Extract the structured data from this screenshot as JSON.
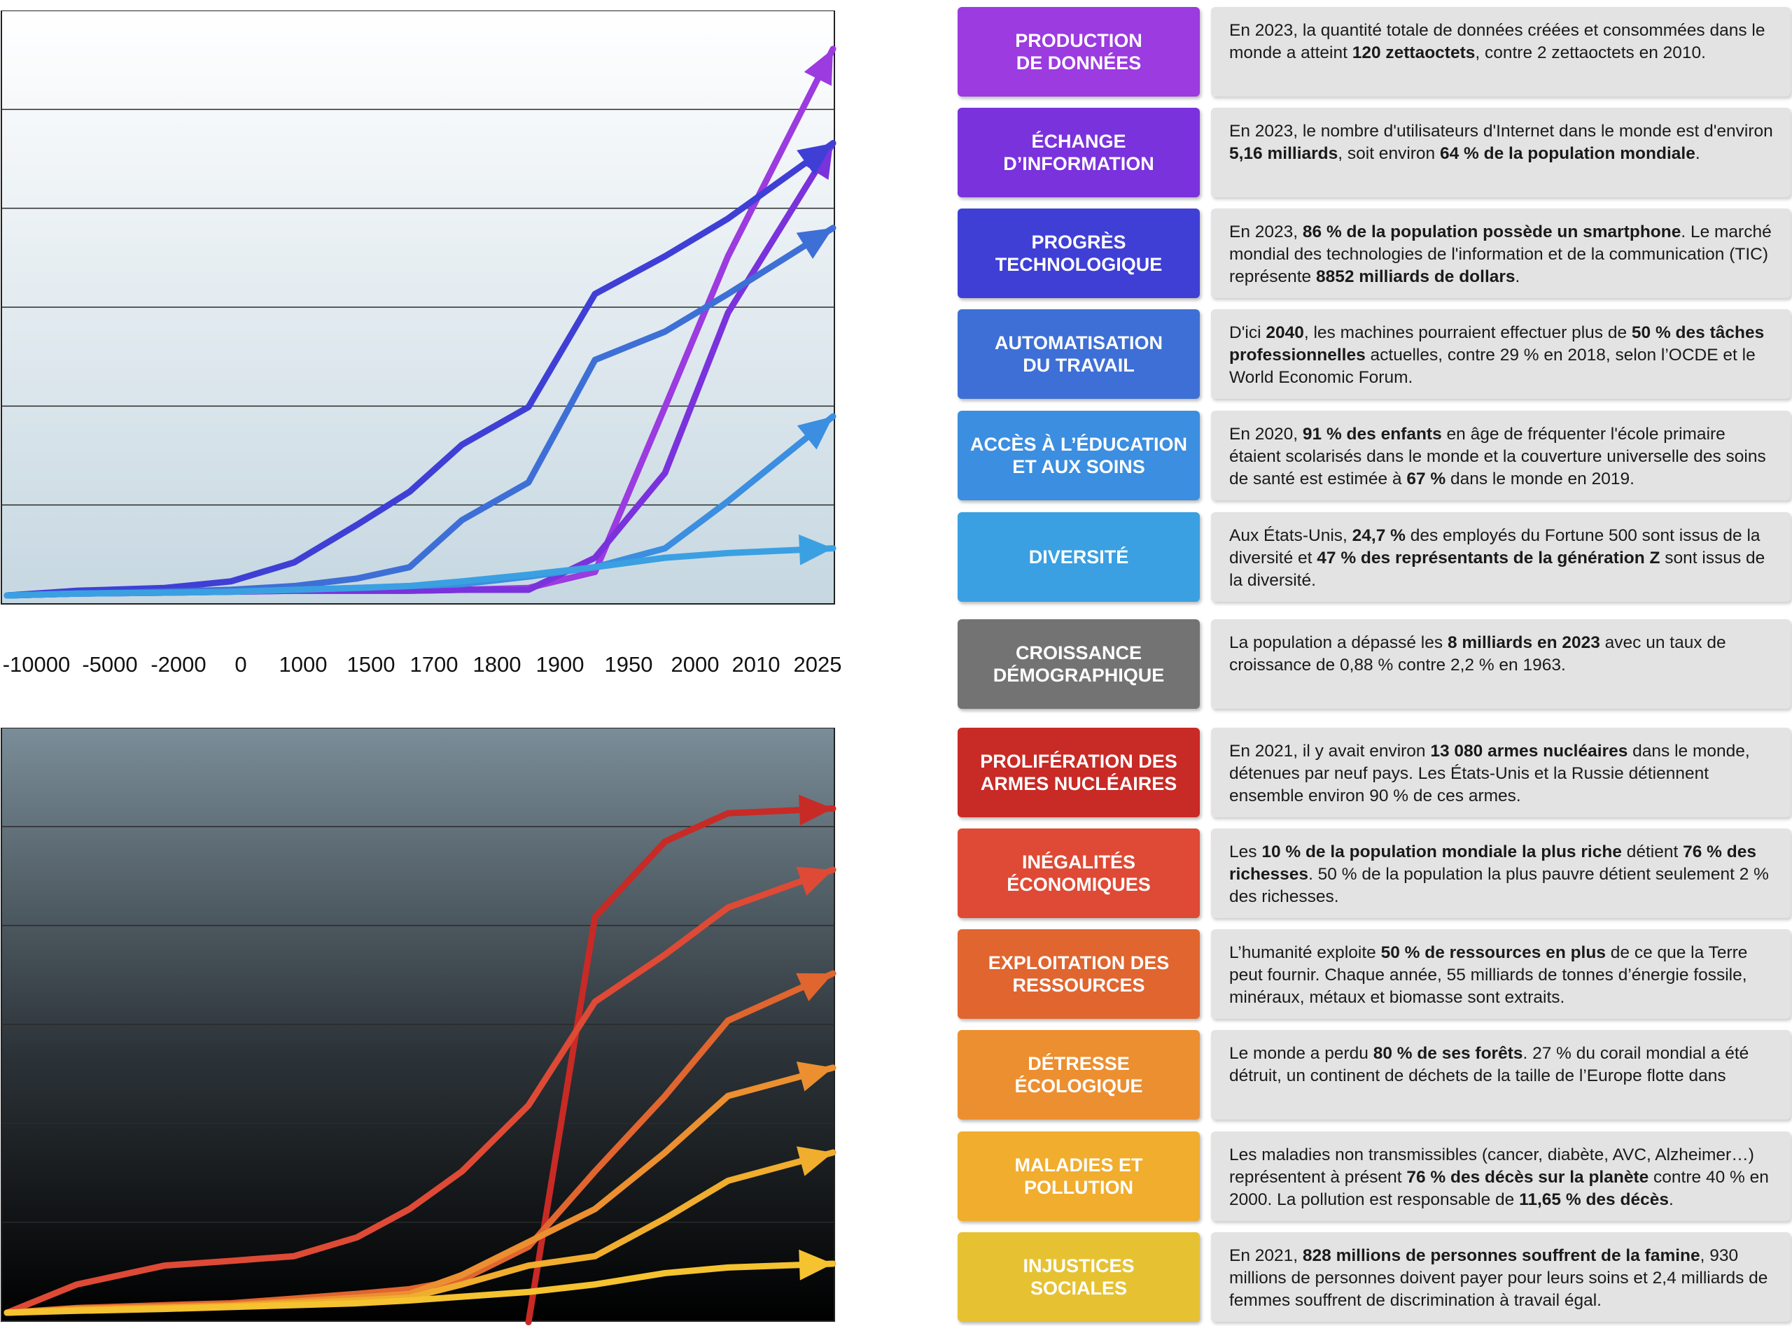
{
  "chart_data": [
    {
      "type": "line",
      "title": "",
      "xlabel": "",
      "ylabel": "",
      "categories": [
        "-10000",
        "-5000",
        "-2000",
        "0",
        "1000",
        "1500",
        "1700",
        "1800",
        "1900",
        "1950",
        "2000",
        "2010",
        "2025"
      ],
      "ylim": [
        0,
        6
      ],
      "grid": true,
      "series": [
        {
          "name": "Production de données",
          "color": "#9b3be0",
          "values": [
            0,
            0.02,
            0.03,
            0.04,
            0.05,
            0.05,
            0.05,
            0.06,
            0.08,
            0.25,
            2.0,
            3.6,
            5.8
          ]
        },
        {
          "name": "Échange d'information",
          "color": "#7a32dc",
          "values": [
            0,
            0.02,
            0.03,
            0.04,
            0.05,
            0.05,
            0.05,
            0.06,
            0.06,
            0.4,
            1.3,
            3.0,
            4.8
          ]
        },
        {
          "name": "Progrès technologique",
          "color": "#3f3fd6",
          "values": [
            0,
            0.05,
            0.08,
            0.15,
            0.35,
            0.75,
            1.1,
            1.6,
            2.0,
            3.2,
            3.6,
            4.0,
            4.8
          ]
        },
        {
          "name": "Automatisation du travail",
          "color": "#3e6fd6",
          "values": [
            0,
            0.02,
            0.04,
            0.06,
            0.1,
            0.18,
            0.3,
            0.8,
            1.2,
            2.5,
            2.8,
            3.2,
            3.9
          ]
        },
        {
          "name": "Accès à l'éducation et aux soins",
          "color": "#3b8ee0",
          "values": [
            0,
            0.02,
            0.03,
            0.04,
            0.06,
            0.08,
            0.1,
            0.12,
            0.2,
            0.3,
            0.5,
            1.0,
            1.9
          ]
        },
        {
          "name": "Diversité",
          "color": "#3aa0e2",
          "values": [
            0,
            0.02,
            0.03,
            0.04,
            0.06,
            0.08,
            0.1,
            0.15,
            0.22,
            0.3,
            0.4,
            0.45,
            0.5
          ]
        }
      ]
    },
    {
      "type": "line",
      "title": "",
      "xlabel": "",
      "ylabel": "",
      "categories": [
        "-10000",
        "-5000",
        "-2000",
        "0",
        "1000",
        "1500",
        "1700",
        "1800",
        "1900",
        "1950",
        "2000",
        "2010",
        "2025"
      ],
      "ylim": [
        0,
        6
      ],
      "grid": true,
      "series": [
        {
          "name": "Prolifération des armes nucléaires",
          "color": "#c82a26",
          "values": [
            null,
            null,
            null,
            null,
            null,
            null,
            null,
            null,
            -0.1,
            4.2,
            5.0,
            5.3,
            5.35
          ]
        },
        {
          "name": "Inégalités économiques",
          "color": "#de4a35",
          "values": [
            0,
            0.3,
            0.5,
            0.55,
            0.6,
            0.8,
            1.1,
            1.5,
            2.2,
            3.3,
            3.8,
            4.3,
            4.7
          ]
        },
        {
          "name": "Exploitation des ressources",
          "color": "#e0652f",
          "values": [
            0,
            0.05,
            0.08,
            0.1,
            0.15,
            0.2,
            0.25,
            0.35,
            0.7,
            1.5,
            2.3,
            3.1,
            3.6
          ]
        },
        {
          "name": "Détresse écologique",
          "color": "#ec8f30",
          "values": [
            0,
            0.04,
            0.06,
            0.08,
            0.12,
            0.16,
            0.2,
            0.4,
            0.75,
            1.1,
            1.7,
            2.3,
            2.6
          ]
        },
        {
          "name": "Maladies et pollution",
          "color": "#f0ad2e",
          "values": [
            0,
            0.03,
            0.05,
            0.07,
            0.1,
            0.13,
            0.16,
            0.3,
            0.5,
            0.6,
            1.0,
            1.4,
            1.7
          ]
        },
        {
          "name": "Injustices sociales",
          "color": "#f5c230",
          "values": [
            0,
            0.02,
            0.04,
            0.06,
            0.08,
            0.1,
            0.13,
            0.17,
            0.22,
            0.3,
            0.42,
            0.48,
            0.52
          ]
        }
      ]
    }
  ],
  "rows": [
    {
      "label": "PRODUCTION\nDE DONNÉES",
      "color": "#9b3be0",
      "parts": [
        [
          "En 2023, la quantité totale de données créées et consommées dans le monde a atteint ",
          0
        ],
        [
          "120 zettaoctets",
          1
        ],
        [
          ", contre 2 zettaoctets en 2010.",
          0
        ]
      ]
    },
    {
      "label": "ÉCHANGE\nD’INFORMATION",
      "color": "#7a32dc",
      "parts": [
        [
          "En 2023, le nombre d'utilisateurs d'Internet dans le monde est d'environ ",
          0
        ],
        [
          "5,16 milliards",
          1
        ],
        [
          ", soit environ ",
          0
        ],
        [
          "64 % de la population mondiale",
          1
        ],
        [
          ".",
          0
        ]
      ]
    },
    {
      "label": "PROGRÈS\nTECHNOLOGIQUE",
      "color": "#3f3fd6",
      "parts": [
        [
          "En 2023, ",
          0
        ],
        [
          "86 % de la population possède un smartphone",
          1
        ],
        [
          ". Le marché mondial des technologies de l'information et de la communication (TIC) représente ",
          0
        ],
        [
          "8852 milliards de dollars",
          1
        ],
        [
          ".",
          0
        ]
      ]
    },
    {
      "label": "AUTOMATISATION\nDU TRAVAIL",
      "color": "#3e6fd6",
      "parts": [
        [
          "D'ici ",
          0
        ],
        [
          "2040",
          1
        ],
        [
          ", les machines pourraient effectuer plus de ",
          0
        ],
        [
          "50 % des tâches professionnelles",
          1
        ],
        [
          " actuelles, contre 29 % en 2018, selon l’OCDE et le World Economic Forum.",
          0
        ]
      ]
    },
    {
      "label": "ACCÈS À L’ÉDUCATION\nET AUX SOINS",
      "color": "#3b8ee0",
      "parts": [
        [
          "En 2020, ",
          0
        ],
        [
          "91 % des enfants",
          1
        ],
        [
          " en âge de fréquenter l'école primaire étaient scolarisés dans le monde  et la couverture universelle des soins de santé est estimée à ",
          0
        ],
        [
          "67 %",
          1
        ],
        [
          " dans le monde en 2019.",
          0
        ]
      ]
    },
    {
      "label": "DIVERSITÉ",
      "color": "#3aa0e2",
      "parts": [
        [
          "Aux États-Unis, ",
          0
        ],
        [
          "24,7 %",
          1
        ],
        [
          " des employés du Fortune 500 sont issus de la diversité et ",
          0
        ],
        [
          "47 % des représentants de la génération Z",
          1
        ],
        [
          " sont issus de la diversité.",
          0
        ]
      ]
    },
    {
      "label": "CROISSANCE\nDÉMOGRAPHIQUE",
      "color": "#737373",
      "parts": [
        [
          "La population a dépassé les ",
          0
        ],
        [
          "8 milliards en 2023",
          1
        ],
        [
          " avec un taux de croissance de 0,88 % contre 2,2 % en 1963.",
          0
        ]
      ]
    },
    {
      "label": "PROLIFÉRATION DES\nARMES NUCLÉAIRES",
      "color": "#c82a26",
      "parts": [
        [
          "En 2021, il y avait environ ",
          0
        ],
        [
          "13 080 armes nucléaires",
          1
        ],
        [
          " dans le monde, détenues par neuf pays. Les États-Unis et la Russie détiennent ensemble environ 90 % de ces armes.",
          0
        ]
      ]
    },
    {
      "label": "INÉGALITÉS\nÉCONOMIQUES",
      "color": "#de4a35",
      "parts": [
        [
          "Les ",
          0
        ],
        [
          "10 % de la population mondiale la plus riche",
          1
        ],
        [
          " détient ",
          0
        ],
        [
          "76 % des richesses",
          1
        ],
        [
          ". 50 % de la population la plus pauvre détient seulement 2 % des richesses.",
          0
        ]
      ]
    },
    {
      "label": "EXPLOITATION DES\nRESSOURCES",
      "color": "#e0652f",
      "parts": [
        [
          "L’humanité exploite ",
          0
        ],
        [
          "50 % de ressources en plus",
          1
        ],
        [
          " de ce que la Terre peut fournir. Chaque année, 55 milliards de tonnes d’énergie fossile, minéraux, métaux et biomasse sont extraits.",
          0
        ]
      ]
    },
    {
      "label": "DÉTRESSE\nÉCOLOGIQUE",
      "color": "#ec8f30",
      "parts": [
        [
          "Le monde a perdu ",
          0
        ],
        [
          "80 % de ses forêts",
          1
        ],
        [
          ". 27 % du corail mondial a été détruit, un continent de déchets de la taille de l’Europe flotte dans",
          0
        ]
      ]
    },
    {
      "label": "MALADIES ET\nPOLLUTION",
      "color": "#f0ad2e",
      "parts": [
        [
          "Les maladies non transmissibles (cancer, diabète, AVC, Alzheimer…) représentent à présent ",
          0
        ],
        [
          "76 % des décès sur la planète",
          1
        ],
        [
          " contre 40 % en 2000. La pollution est responsable de ",
          0
        ],
        [
          "11,65 % des décès",
          1
        ],
        [
          ".",
          0
        ]
      ]
    },
    {
      "label": "INJUSTICES\nSOCIALES",
      "color": "#e6c232",
      "parts": [
        [
          "En 2021, ",
          0
        ],
        [
          "828 millions de personnes souffrent de la famine",
          1
        ],
        [
          ", 930 millions de personnes doivent payer pour leurs soins et 2,4 milliards de femmes souffrent de discrimination à travail égal.",
          0
        ]
      ]
    }
  ]
}
